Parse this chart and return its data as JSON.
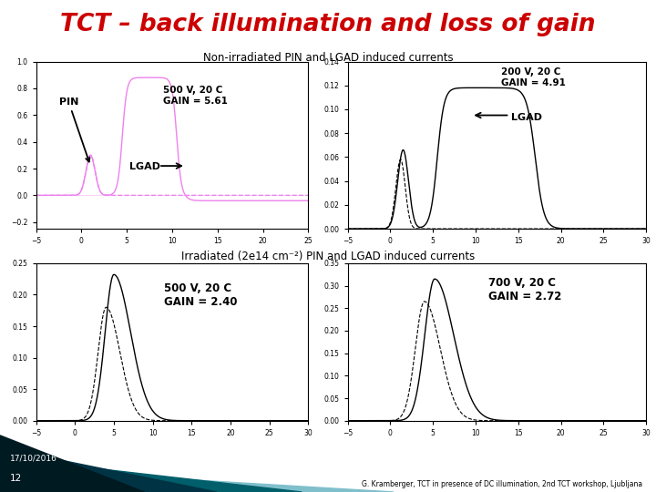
{
  "title": "TCT – back illumination and loss of gain",
  "subtitle1": "Non-irradiated PIN and LGAD induced currents",
  "subtitle2": "Irradiated (2e14 cm⁻²) PIN and LGAD induced currents",
  "bg_color": "#ffffff",
  "title_color": "#cc0000",
  "footer_left_line1": "17/10/2016",
  "footer_left_line2": "12",
  "footer_right": "G. Kramberger, TCT in presence of DC illumination, 2nd TCT workshop, Ljubljana",
  "plot1_annot_gain": "500 V, 20 C\nGAIN = 5.61",
  "plot1_annot_lgad": "LGAD",
  "plot1_annot_pin": "PIN",
  "plot2_annot_gain": "200 V, 20 C\nGAIN = 4.91",
  "plot2_annot_lgad": "LGAD",
  "plot3_annot_gain": "500 V, 20 C\nGAIN = 2.40",
  "plot4_annot_gain": "700 V, 20 C\nGAIN = 2.72",
  "tri_colors": [
    "#001a22",
    "#003344",
    "#005f6b",
    "#7fbfcc"
  ],
  "magenta": "#ee82ee"
}
